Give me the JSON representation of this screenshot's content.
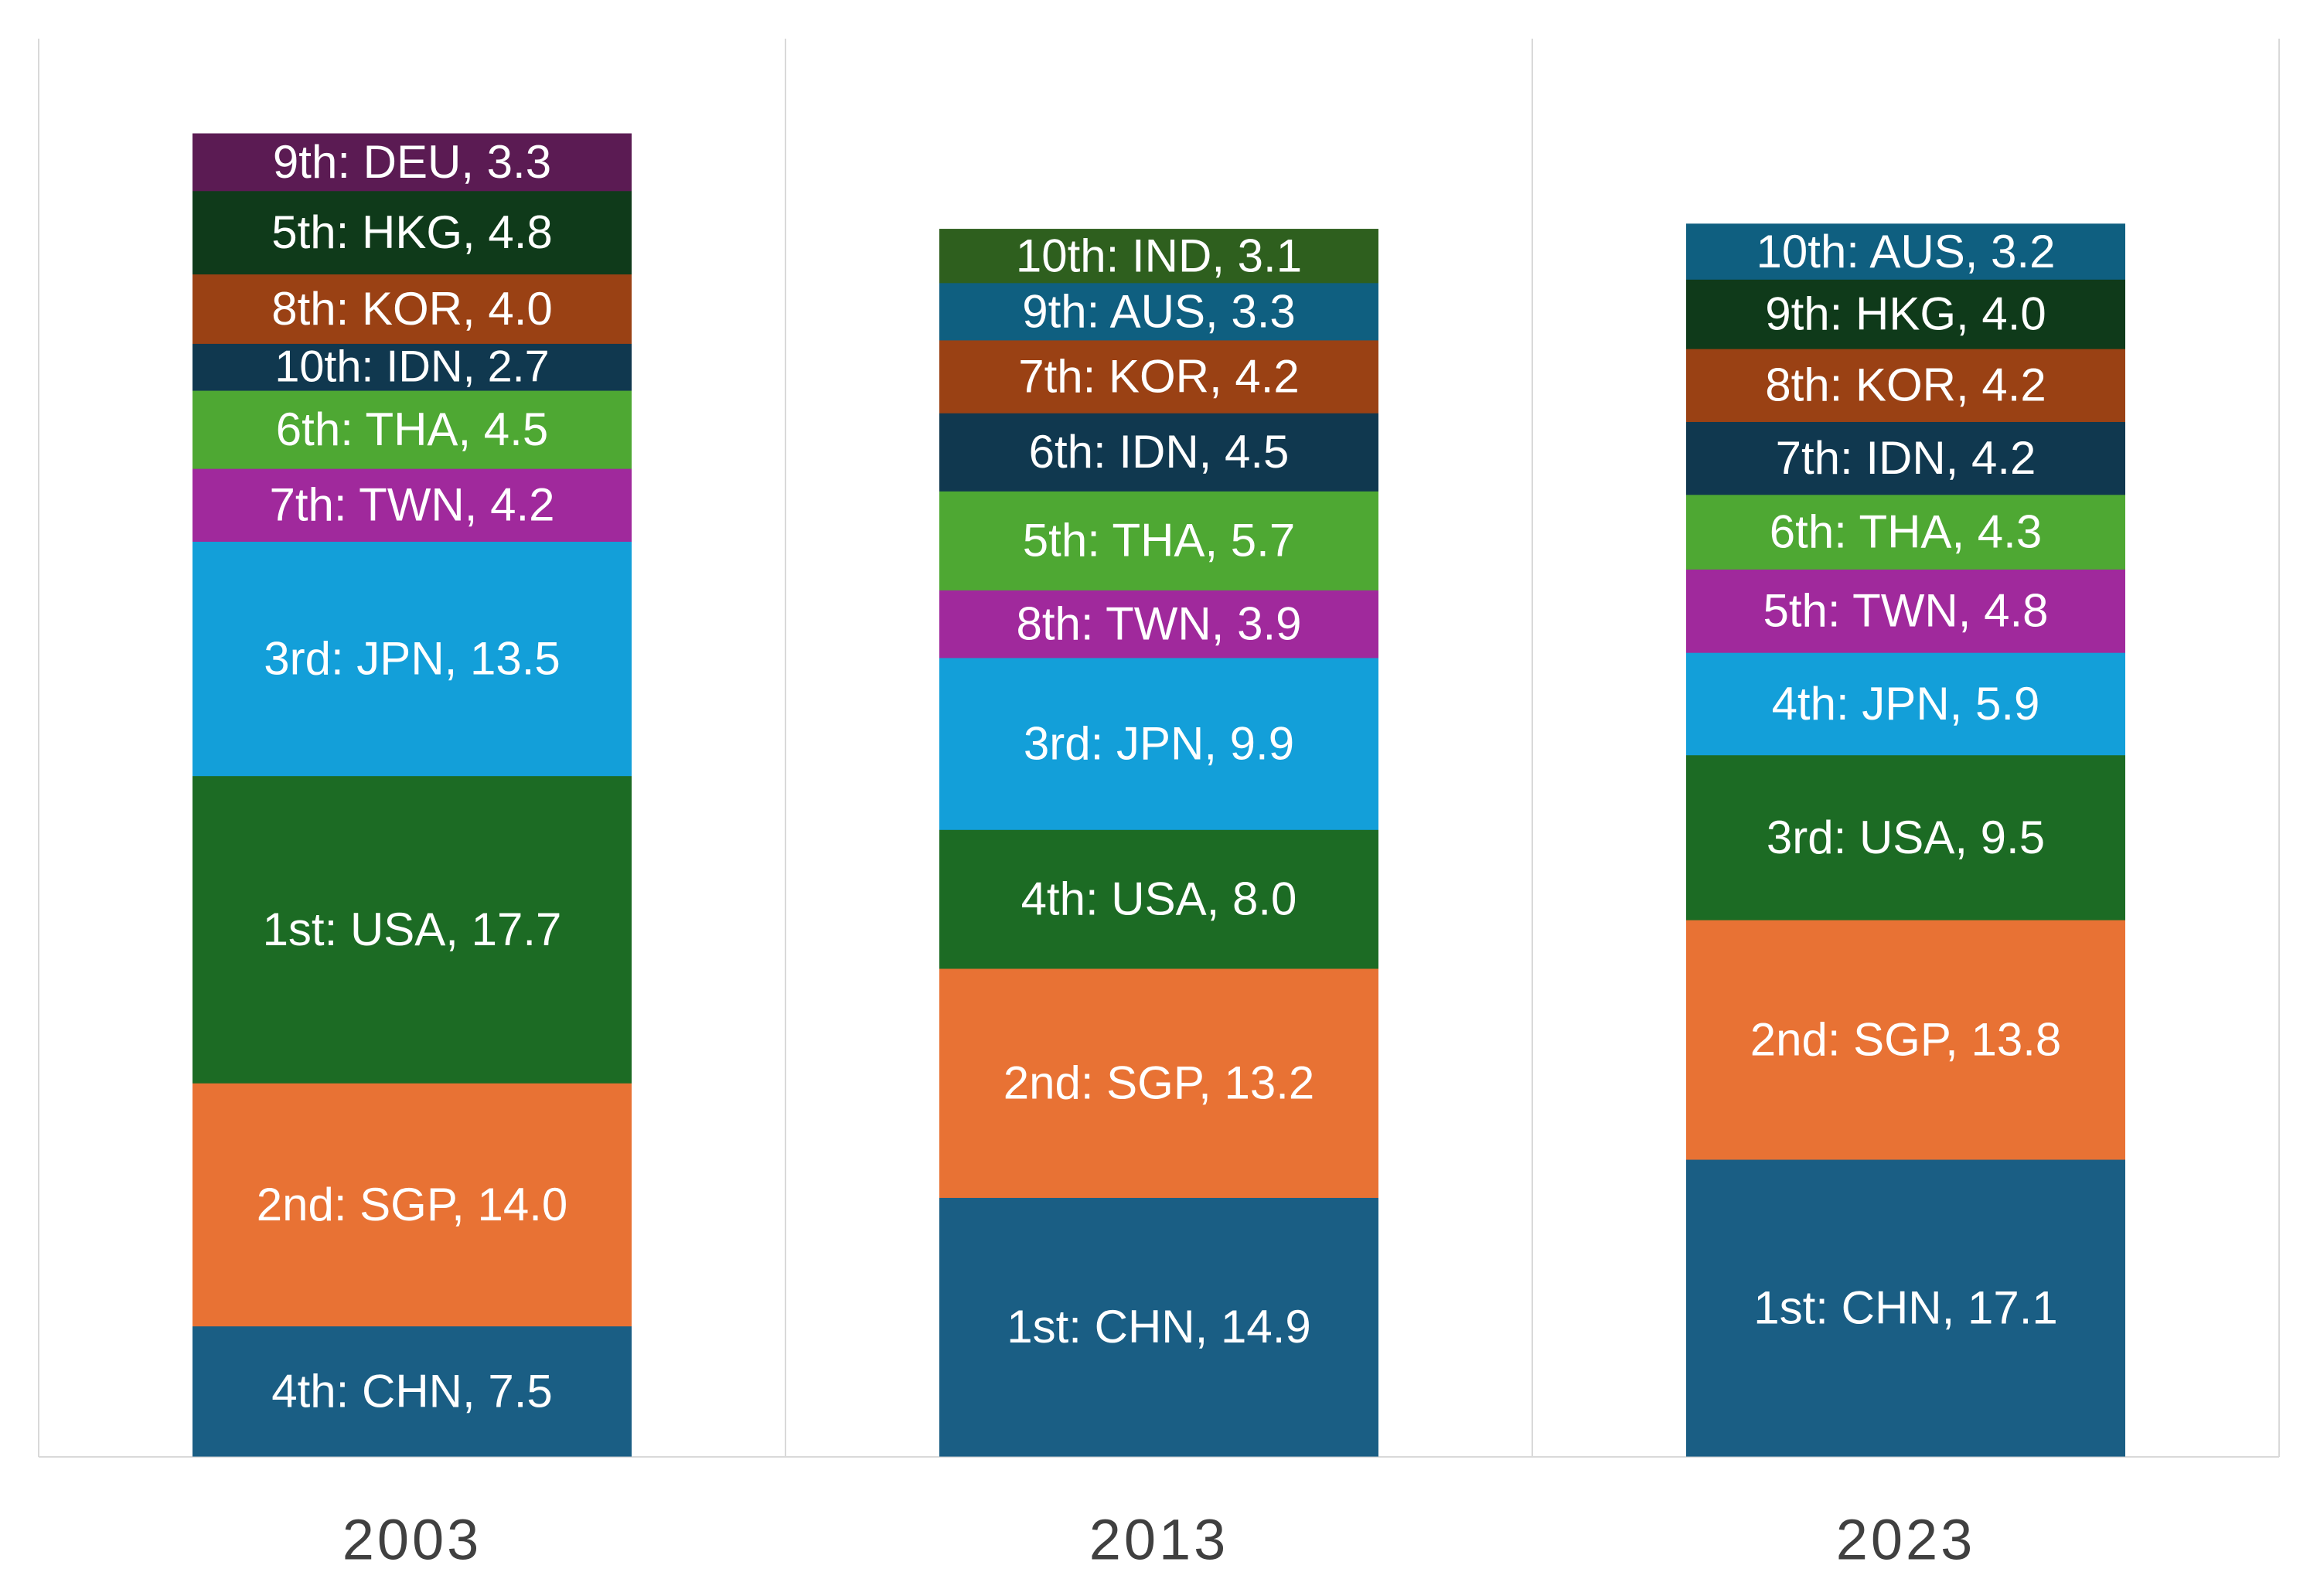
{
  "chart_data": {
    "type": "bar",
    "stacked": true,
    "categories": [
      "2003",
      "2013",
      "2023"
    ],
    "stacks": [
      {
        "year": "2003",
        "segments": [
          {
            "label": "4th: CHN, 7.5",
            "value": 7.5,
            "color": "#1a5e84"
          },
          {
            "label": "2nd: SGP, 14.0",
            "value": 14.0,
            "color": "#e87234"
          },
          {
            "label": "1st: USA, 17.7",
            "value": 17.7,
            "color": "#1c6b24"
          },
          {
            "label": "3rd: JPN, 13.5",
            "value": 13.5,
            "color": "#139fd9"
          },
          {
            "label": "7th: TWN, 4.2",
            "value": 4.2,
            "color": "#a0299c"
          },
          {
            "label": "6th: THA, 4.5",
            "value": 4.5,
            "color": "#4ea833"
          },
          {
            "label": "10th: IDN, 2.7",
            "value": 2.7,
            "color": "#10384f"
          },
          {
            "label": "8th: KOR, 4.0",
            "value": 4.0,
            "color": "#9a4114"
          },
          {
            "label": "5th: HKG, 4.8",
            "value": 4.8,
            "color": "#0f3a1a"
          },
          {
            "label": "9th: DEU, 3.3",
            "value": 3.3,
            "color": "#5b1b53"
          }
        ]
      },
      {
        "year": "2013",
        "segments": [
          {
            "label": "1st: CHN, 14.9",
            "value": 14.9,
            "color": "#1a5e84"
          },
          {
            "label": "2nd: SGP, 13.2",
            "value": 13.2,
            "color": "#e87234"
          },
          {
            "label": "4th: USA, 8.0",
            "value": 8.0,
            "color": "#1c6b24"
          },
          {
            "label": "3rd: JPN, 9.9",
            "value": 9.9,
            "color": "#139fd9"
          },
          {
            "label": "8th: TWN, 3.9",
            "value": 3.9,
            "color": "#a0299c"
          },
          {
            "label": "5th: THA, 5.7",
            "value": 5.7,
            "color": "#4ea833"
          },
          {
            "label": "6th: IDN, 4.5",
            "value": 4.5,
            "color": "#10384f"
          },
          {
            "label": "7th: KOR, 4.2",
            "value": 4.2,
            "color": "#9a4114"
          },
          {
            "label": "9th: AUS, 3.3",
            "value": 3.3,
            "color": "#0f5f80"
          },
          {
            "label": "10th: IND, 3.1",
            "value": 3.1,
            "color": "#2e5f1e"
          }
        ]
      },
      {
        "year": "2023",
        "segments": [
          {
            "label": "1st: CHN, 17.1",
            "value": 17.1,
            "color": "#1a5e84"
          },
          {
            "label": "2nd: SGP, 13.8",
            "value": 13.8,
            "color": "#e87234"
          },
          {
            "label": "3rd: USA, 9.5",
            "value": 9.5,
            "color": "#1c6b24"
          },
          {
            "label": "4th: JPN, 5.9",
            "value": 5.9,
            "color": "#139fd9"
          },
          {
            "label": "5th: TWN, 4.8",
            "value": 4.8,
            "color": "#a0299c"
          },
          {
            "label": "6th: THA, 4.3",
            "value": 4.3,
            "color": "#4ea833"
          },
          {
            "label": "7th: IDN, 4.2",
            "value": 4.2,
            "color": "#10384f"
          },
          {
            "label": "8th: KOR, 4.2",
            "value": 4.2,
            "color": "#9a4114"
          },
          {
            "label": "9th: HKG, 4.0",
            "value": 4.0,
            "color": "#0f3a1a"
          },
          {
            "label": "10th: AUS, 3.2",
            "value": 3.2,
            "color": "#0f5f80"
          }
        ]
      }
    ],
    "ylim": [
      0,
      82
    ],
    "grid": false,
    "legend": "none"
  }
}
